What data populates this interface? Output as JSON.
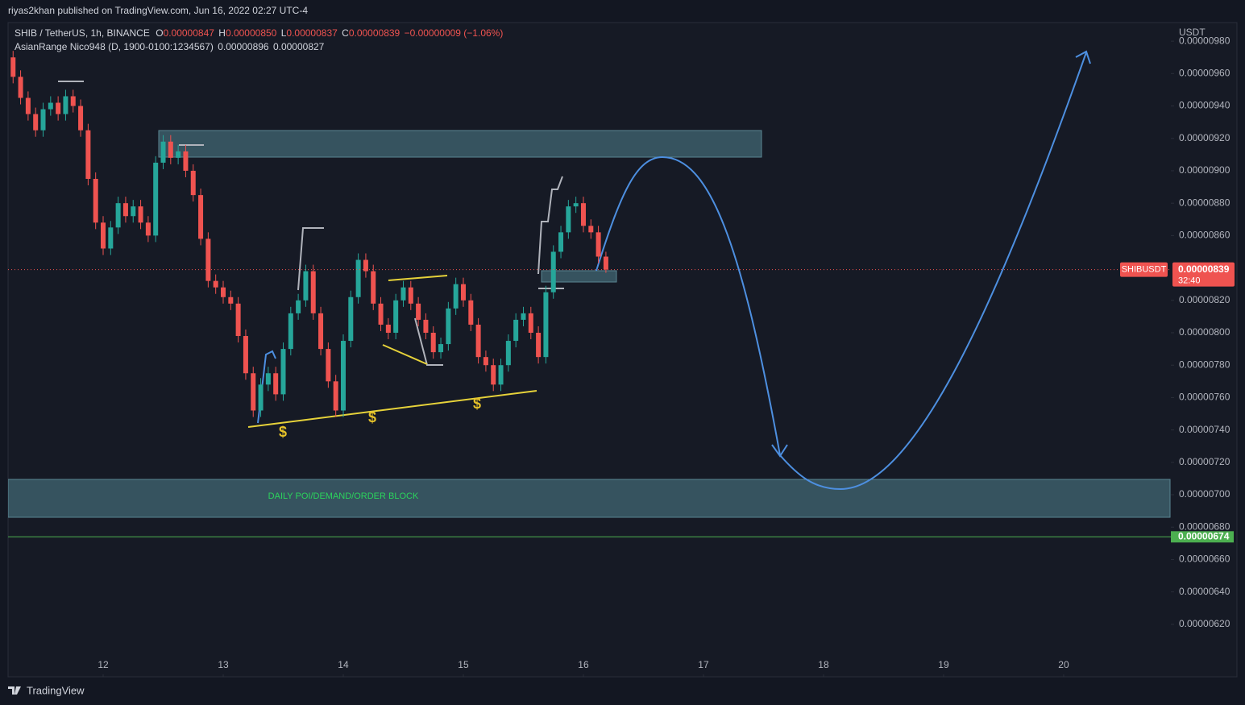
{
  "header": {
    "publisher": "riyas2khan published on TradingView.com, Jun 16, 2022 02:27 UTC-4"
  },
  "chart_data": {
    "type": "candlestick",
    "symbol": "SHIB / TetherUS, 1h, BINANCE",
    "ohlc_legend": [
      {
        "key": "O",
        "price": {
          "value": 8.47e-06,
          "label": "0.00000847"
        }
      },
      {
        "key": "H",
        "price": {
          "value": 8.5e-06,
          "label": "0.00000850"
        }
      },
      {
        "key": "L",
        "price": {
          "value": 8.37e-06,
          "label": "0.00000837"
        }
      },
      {
        "key": "C",
        "price": {
          "value": 8.39e-06,
          "label": "0.00000839"
        }
      }
    ],
    "change": "−0.00000009 (−1.06%)",
    "indicator": {
      "name": "AsianRange Nico948 (D, 1900-0100:1234567)",
      "values": [
        {
          "value": 8.96e-06,
          "label": "0.00000896"
        },
        {
          "value": 8.27e-06,
          "label": "0.00000827"
        }
      ]
    },
    "currency": "USDT",
    "x": [
      11.25,
      11.3125,
      11.375,
      11.4375,
      11.5,
      11.5625,
      11.625,
      11.6875,
      11.75,
      11.8125,
      11.875,
      11.9375,
      12,
      12.0625,
      12.125,
      12.1875,
      12.25,
      12.3125,
      12.375,
      12.4375,
      12.5,
      12.5625,
      12.625,
      12.6875,
      12.75,
      12.8125,
      12.875,
      12.9375,
      13,
      13.0625,
      13.125,
      13.1875,
      13.25,
      13.3125,
      13.375,
      13.4375,
      13.5,
      13.5625,
      13.625,
      13.6875,
      13.75,
      13.8125,
      13.875,
      13.9375,
      14,
      14.0625,
      14.125,
      14.1875,
      14.25,
      14.3125,
      14.375,
      14.4375,
      14.5,
      14.5625,
      14.625,
      14.6875,
      14.75,
      14.8125,
      14.875,
      14.9375,
      15,
      15.0625,
      15.125,
      15.1875,
      15.25,
      15.3125,
      15.375,
      15.4375,
      15.5,
      15.5625,
      15.625,
      15.6875,
      15.75,
      15.8125,
      15.875,
      15.9375,
      16,
      16.0625,
      16.125,
      16.1875
    ],
    "open": [
      9.7e-06,
      9.58e-06,
      9.45e-06,
      9.35e-06,
      9.25e-06,
      9.38e-06,
      9.42e-06,
      9.35e-06,
      9.46e-06,
      9.4e-06,
      9.25e-06,
      8.95e-06,
      8.68e-06,
      8.52e-06,
      8.65e-06,
      8.8e-06,
      8.72e-06,
      8.78e-06,
      8.68e-06,
      8.6e-06,
      9.05e-06,
      9.18e-06,
      9.08e-06,
      9.12e-06,
      9e-06,
      8.85e-06,
      8.58e-06,
      8.32e-06,
      8.28e-06,
      8.22e-06,
      8.18e-06,
      7.98e-06,
      7.75e-06,
      7.52e-06,
      7.68e-06,
      7.75e-06,
      7.62e-06,
      7.9e-06,
      8.12e-06,
      8.2e-06,
      8.38e-06,
      8.12e-06,
      7.9e-06,
      7.7e-06,
      7.52e-06,
      7.95e-06,
      8.22e-06,
      8.45e-06,
      8.38e-06,
      8.18e-06,
      8.05e-06,
      8e-06,
      8.2e-06,
      8.28e-06,
      8.18e-06,
      8.08e-06,
      8e-06,
      7.88e-06,
      7.93e-06,
      8.15e-06,
      8.3e-06,
      8.2e-06,
      8.05e-06,
      7.85e-06,
      7.8e-06,
      7.68e-06,
      7.8e-06,
      7.95e-06,
      8.08e-06,
      8.12e-06,
      8e-06,
      7.85e-06,
      8.25e-06,
      8.5e-06,
      8.62e-06,
      8.78e-06,
      8.8e-06,
      8.66e-06,
      8.62e-06,
      8.47e-06
    ],
    "high": [
      9.74e-06,
      9.62e-06,
      9.49e-06,
      9.39e-06,
      9.42e-06,
      9.46e-06,
      9.46e-06,
      9.5e-06,
      9.5e-06,
      9.44e-06,
      9.29e-06,
      8.99e-06,
      8.72e-06,
      8.69e-06,
      8.84e-06,
      8.84e-06,
      8.82e-06,
      8.82e-06,
      8.72e-06,
      9.09e-06,
      9.22e-06,
      9.22e-06,
      9.16e-06,
      9.16e-06,
      9.04e-06,
      8.89e-06,
      8.62e-06,
      8.36e-06,
      8.32e-06,
      8.26e-06,
      8.22e-06,
      8.02e-06,
      7.79e-06,
      7.72e-06,
      7.79e-06,
      7.79e-06,
      7.94e-06,
      8.16e-06,
      8.24e-06,
      8.42e-06,
      8.42e-06,
      8.16e-06,
      7.94e-06,
      7.74e-06,
      7.99e-06,
      8.26e-06,
      8.49e-06,
      8.49e-06,
      8.42e-06,
      8.22e-06,
      8.09e-06,
      8.24e-06,
      8.32e-06,
      8.32e-06,
      8.22e-06,
      8.12e-06,
      8.04e-06,
      7.97e-06,
      8.19e-06,
      8.34e-06,
      8.34e-06,
      8.24e-06,
      8.09e-06,
      7.89e-06,
      7.84e-06,
      7.84e-06,
      7.99e-06,
      8.12e-06,
      8.16e-06,
      8.16e-06,
      8.04e-06,
      8.29e-06,
      8.54e-06,
      8.66e-06,
      8.82e-06,
      8.84e-06,
      8.84e-06,
      8.7e-06,
      8.66e-06,
      8.5e-06
    ],
    "low": [
      9.54e-06,
      9.41e-06,
      9.31e-06,
      9.21e-06,
      9.21e-06,
      9.34e-06,
      9.31e-06,
      9.31e-06,
      9.36e-06,
      9.21e-06,
      8.91e-06,
      8.64e-06,
      8.48e-06,
      8.48e-06,
      8.61e-06,
      8.68e-06,
      8.68e-06,
      8.64e-06,
      8.56e-06,
      8.56e-06,
      9.01e-06,
      9.04e-06,
      9.04e-06,
      8.96e-06,
      8.81e-06,
      8.54e-06,
      8.28e-06,
      8.24e-06,
      8.18e-06,
      8.14e-06,
      7.94e-06,
      7.71e-06,
      7.48e-06,
      7.48e-06,
      7.64e-06,
      7.58e-06,
      7.58e-06,
      7.86e-06,
      8.08e-06,
      8.16e-06,
      8.08e-06,
      7.86e-06,
      7.66e-06,
      7.48e-06,
      7.48e-06,
      7.91e-06,
      8.18e-06,
      8.34e-06,
      8.14e-06,
      8.01e-06,
      7.96e-06,
      7.96e-06,
      8.16e-06,
      8.14e-06,
      8.04e-06,
      7.96e-06,
      7.84e-06,
      7.84e-06,
      7.89e-06,
      8.11e-06,
      8.16e-06,
      8.01e-06,
      7.81e-06,
      7.76e-06,
      7.64e-06,
      7.64e-06,
      7.76e-06,
      7.91e-06,
      8.04e-06,
      7.96e-06,
      7.81e-06,
      7.81e-06,
      8.21e-06,
      8.46e-06,
      8.58e-06,
      8.74e-06,
      8.62e-06,
      8.58e-06,
      8.43e-06,
      8.37e-06
    ],
    "close": [
      9.58e-06,
      9.45e-06,
      9.35e-06,
      9.25e-06,
      9.38e-06,
      9.42e-06,
      9.35e-06,
      9.46e-06,
      9.4e-06,
      9.25e-06,
      8.95e-06,
      8.68e-06,
      8.52e-06,
      8.65e-06,
      8.8e-06,
      8.72e-06,
      8.78e-06,
      8.68e-06,
      8.6e-06,
      9.05e-06,
      9.18e-06,
      9.08e-06,
      9.12e-06,
      9e-06,
      8.85e-06,
      8.58e-06,
      8.32e-06,
      8.28e-06,
      8.22e-06,
      8.18e-06,
      7.98e-06,
      7.75e-06,
      7.52e-06,
      7.68e-06,
      7.75e-06,
      7.62e-06,
      7.9e-06,
      8.12e-06,
      8.2e-06,
      8.38e-06,
      8.12e-06,
      7.9e-06,
      7.7e-06,
      7.52e-06,
      7.95e-06,
      8.22e-06,
      8.45e-06,
      8.38e-06,
      8.18e-06,
      8.05e-06,
      8e-06,
      8.2e-06,
      8.28e-06,
      8.18e-06,
      8.08e-06,
      8e-06,
      7.88e-06,
      7.93e-06,
      8.15e-06,
      8.3e-06,
      8.2e-06,
      8.05e-06,
      7.85e-06,
      7.8e-06,
      7.68e-06,
      7.8e-06,
      7.95e-06,
      8.08e-06,
      8.12e-06,
      8e-06,
      7.85e-06,
      8.25e-06,
      8.5e-06,
      8.62e-06,
      8.78e-06,
      8.8e-06,
      8.66e-06,
      8.62e-06,
      8.47e-06,
      8.39e-06
    ],
    "up_color": "#26a69a",
    "down_color": "#ef5350",
    "xlim": [
      11.208,
      20.893
    ],
    "xticks": [
      12,
      13,
      14,
      15,
      16,
      17,
      18,
      19,
      20
    ],
    "ylim": [
      5.876e-06,
      9.915e-06
    ],
    "yticks": [
      {
        "value": 6.2e-06,
        "label": "0.00000620"
      },
      {
        "value": 6.4e-06,
        "label": "0.00000640"
      },
      {
        "value": 6.6e-06,
        "label": "0.00000660"
      },
      {
        "value": 6.8e-06,
        "label": "0.00000680"
      },
      {
        "value": 7e-06,
        "label": "0.00000700"
      },
      {
        "value": 7.2e-06,
        "label": "0.00000720"
      },
      {
        "value": 7.4e-06,
        "label": "0.00000740"
      },
      {
        "value": 7.6e-06,
        "label": "0.00000760"
      },
      {
        "value": 7.8e-06,
        "label": "0.00000780"
      },
      {
        "value": 8e-06,
        "label": "0.00000800"
      },
      {
        "value": 8.2e-06,
        "label": "0.00000820"
      },
      {
        "value": 8.6e-06,
        "label": "0.00000860"
      },
      {
        "value": 8.8e-06,
        "label": "0.00000880"
      },
      {
        "value": 9e-06,
        "label": "0.00000900"
      },
      {
        "value": 9.2e-06,
        "label": "0.00000920"
      },
      {
        "value": 9.4e-06,
        "label": "0.00000940"
      },
      {
        "value": 9.6e-06,
        "label": "0.00000960"
      },
      {
        "value": 9.8e-06,
        "label": "0.00000980"
      }
    ],
    "grid": false,
    "last_price": {
      "value": 8.39e-06,
      "label": "0.00000839"
    },
    "symbol_tag": "SHIBUSDT",
    "countdown": "32:40",
    "level": {
      "value": 6.74e-06,
      "label": "0.00000674",
      "color": "#4caf50"
    },
    "zone_label": "DAILY POI/DEMAND/ORDER BLOCK"
  },
  "footer": {
    "brand": "TradingView"
  }
}
